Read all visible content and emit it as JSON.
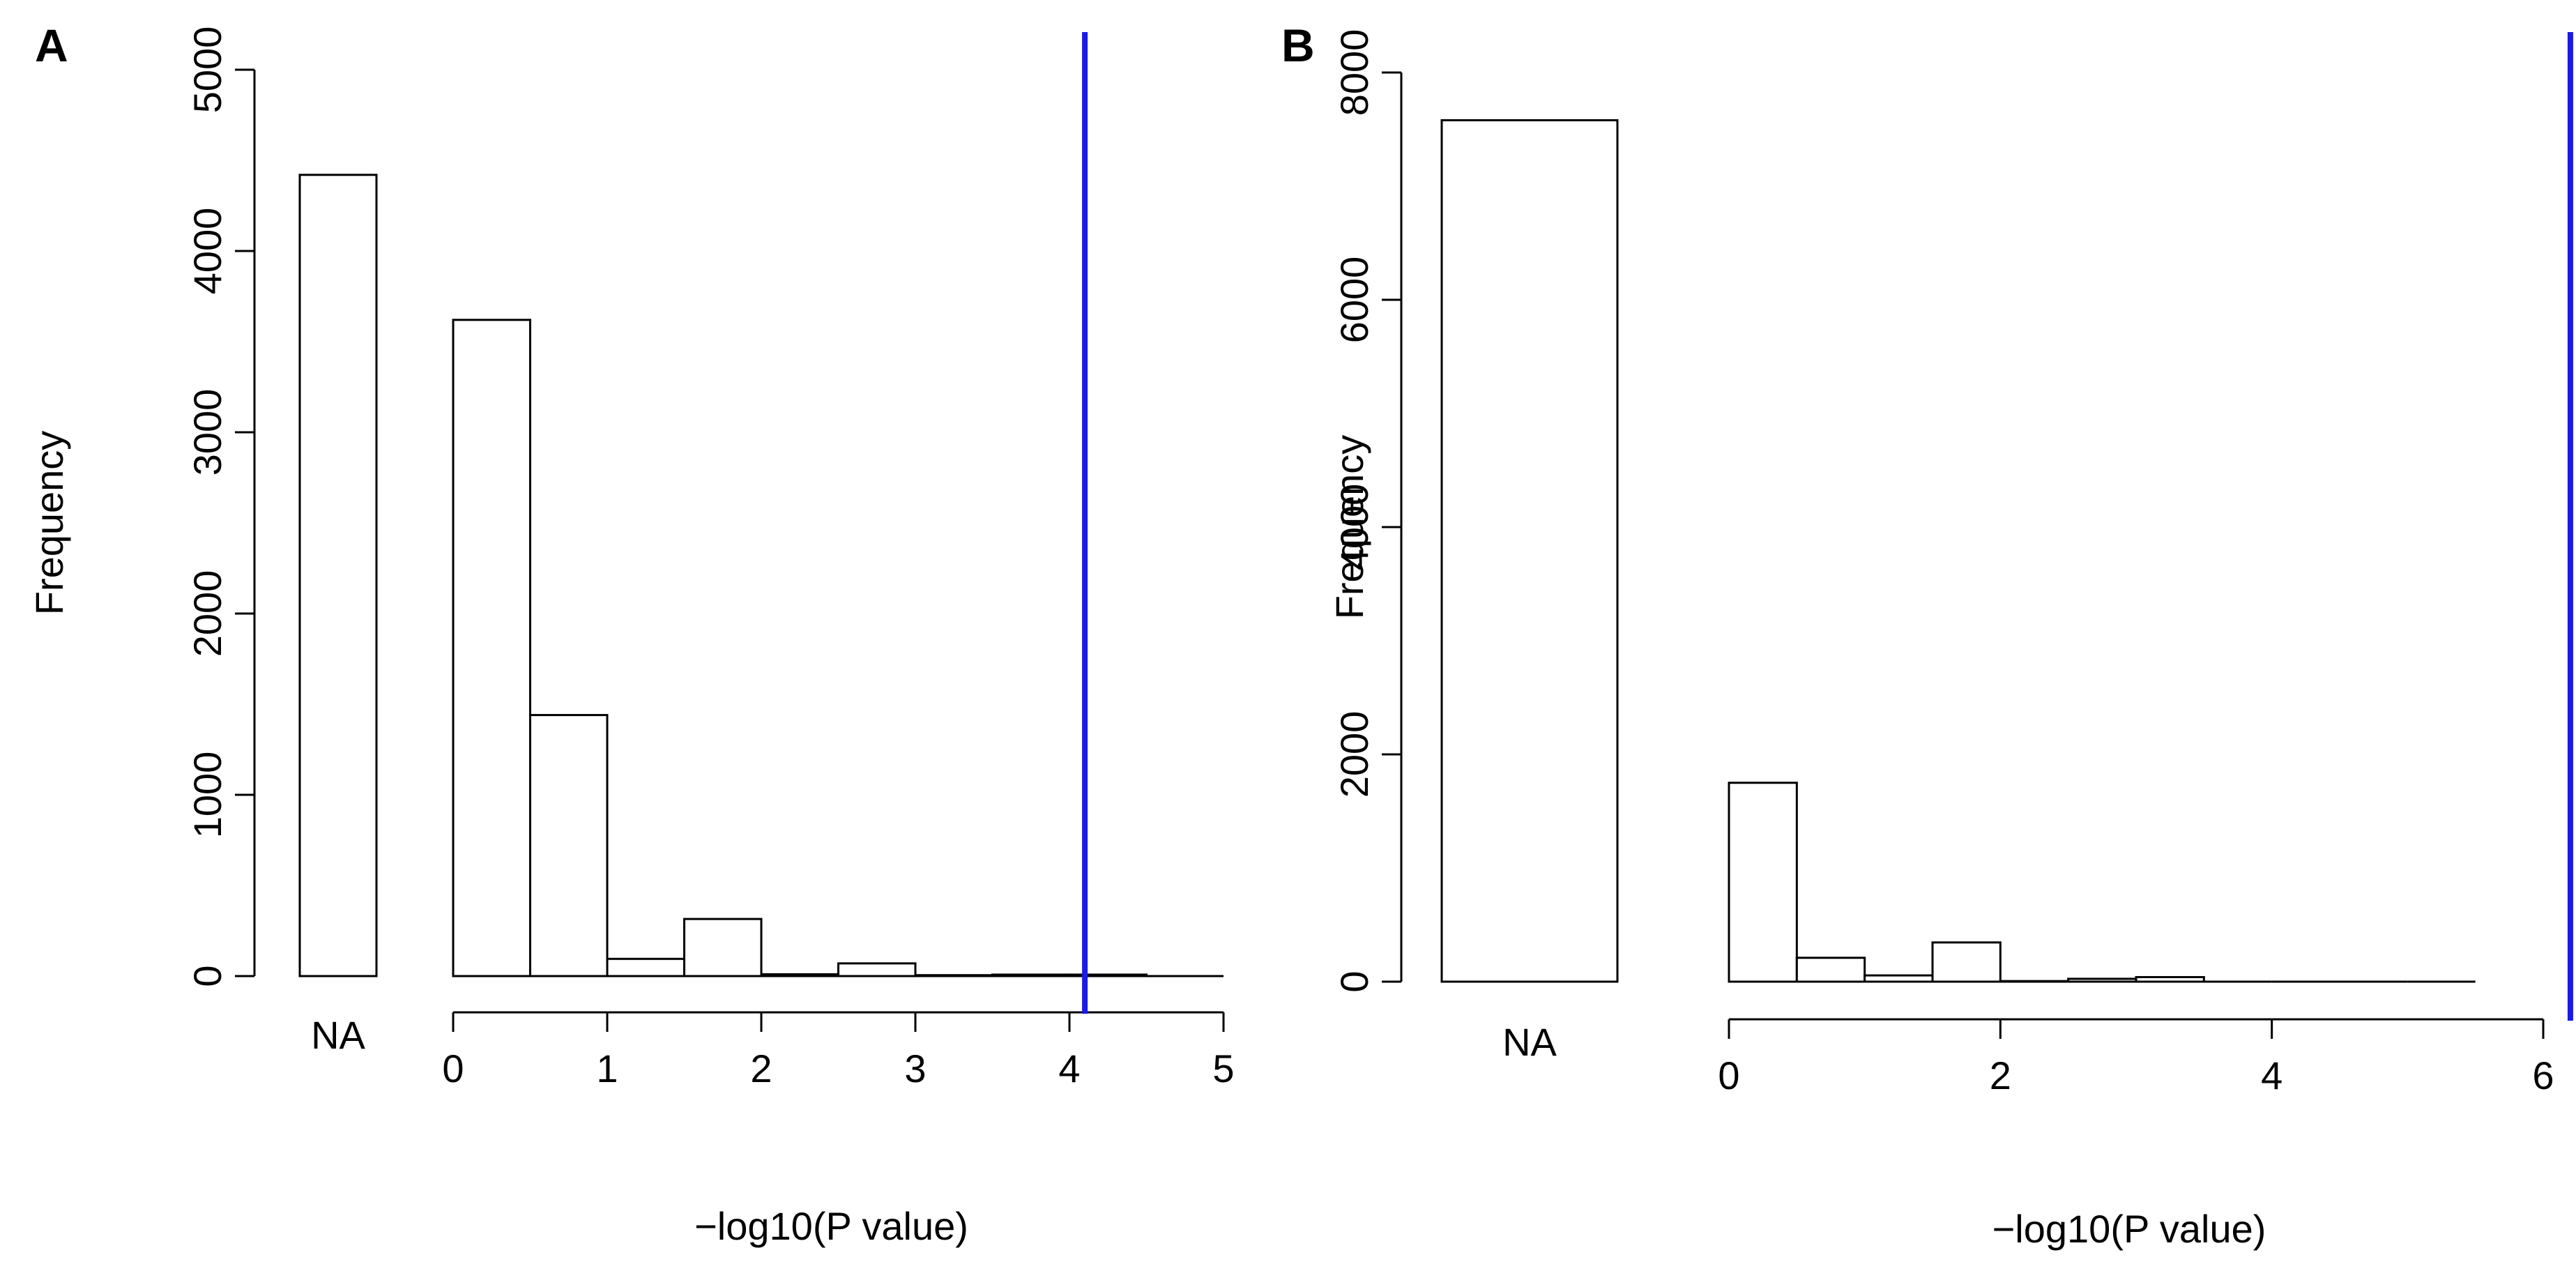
{
  "chart_data": [
    {
      "type": "bar",
      "panel_label": "A",
      "xlabel": "−log10(P value)",
      "ylabel": "Frequency",
      "ylim": [
        0,
        5000
      ],
      "y_ticks": [
        0,
        1000,
        2000,
        3000,
        4000,
        5000
      ],
      "x_ticks": [
        0,
        1,
        2,
        3,
        4,
        5
      ],
      "x_range": [
        0,
        5
      ],
      "na_label": "NA",
      "na_value": 4420,
      "bin_width": 0.5,
      "bins": [
        {
          "x0": 0.0,
          "x1": 0.5,
          "value": 3620
        },
        {
          "x0": 0.5,
          "x1": 1.0,
          "value": 1440
        },
        {
          "x0": 1.0,
          "x1": 1.5,
          "value": 95
        },
        {
          "x0": 1.5,
          "x1": 2.0,
          "value": 315
        },
        {
          "x0": 2.0,
          "x1": 2.5,
          "value": 10
        },
        {
          "x0": 2.5,
          "x1": 3.0,
          "value": 70
        },
        {
          "x0": 3.0,
          "x1": 3.5,
          "value": 5
        },
        {
          "x0": 3.5,
          "x1": 4.0,
          "value": 8
        },
        {
          "x0": 4.0,
          "x1": 4.5,
          "value": 8
        },
        {
          "x0": 4.5,
          "x1": 5.0,
          "value": 0
        }
      ],
      "threshold": 4.1,
      "threshold_color": "#1a1ae6"
    },
    {
      "type": "bar",
      "panel_label": "B",
      "xlabel": "−log10(P value)",
      "ylabel": "Frequency",
      "ylim": [
        0,
        8000
      ],
      "y_ticks": [
        0,
        2000,
        4000,
        6000,
        8000
      ],
      "x_ticks": [
        0,
        2,
        4,
        6
      ],
      "x_range": [
        0,
        6
      ],
      "na_label": "NA",
      "na_value": 7580,
      "bin_width": 0.5,
      "bins": [
        {
          "x0": 0.0,
          "x1": 0.5,
          "value": 1750
        },
        {
          "x0": 0.5,
          "x1": 1.0,
          "value": 210
        },
        {
          "x0": 1.0,
          "x1": 1.5,
          "value": 55
        },
        {
          "x0": 1.5,
          "x1": 2.0,
          "value": 345
        },
        {
          "x0": 2.0,
          "x1": 2.5,
          "value": 5
        },
        {
          "x0": 2.5,
          "x1": 3.0,
          "value": 25
        },
        {
          "x0": 3.0,
          "x1": 3.5,
          "value": 40
        },
        {
          "x0": 3.5,
          "x1": 4.0,
          "value": 0
        },
        {
          "x0": 4.0,
          "x1": 4.5,
          "value": 0
        },
        {
          "x0": 4.5,
          "x1": 5.0,
          "value": 0
        },
        {
          "x0": 5.0,
          "x1": 5.5,
          "value": 0
        }
      ],
      "threshold": 6.2,
      "threshold_color": "#1a1ae6"
    }
  ]
}
